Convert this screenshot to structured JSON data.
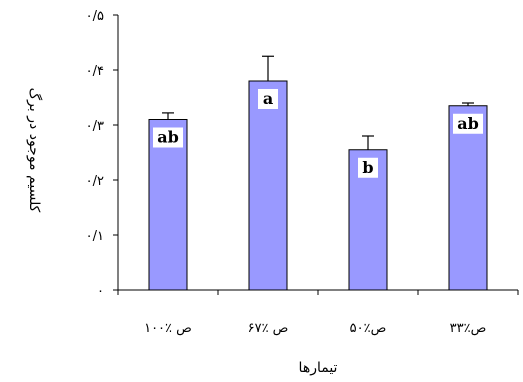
{
  "chart_data": {
    "type": "bar",
    "categories": [
      "ص ٪۱۰۰",
      "ص ٪۶۷",
      "ص٪۵۰",
      "ص٪۳۳"
    ],
    "values": [
      0.31,
      0.38,
      0.255,
      0.335
    ],
    "errors": [
      0.012,
      0.045,
      0.025,
      0.005
    ],
    "letters": [
      "ab",
      "a",
      "b",
      "ab"
    ],
    "ylim": [
      0,
      0.5
    ],
    "yticks": [
      {
        "value": 0,
        "label": "۰"
      },
      {
        "value": 0.1,
        "label": "۰/۱"
      },
      {
        "value": 0.2,
        "label": "۰/۲"
      },
      {
        "value": 0.3,
        "label": "۰/۳"
      },
      {
        "value": 0.4,
        "label": "۰/۴"
      },
      {
        "value": 0.5,
        "label": "۰/۵"
      }
    ],
    "xlabel": "تیمارها",
    "ylabel": "کلسیم موجود در برگ",
    "grid": false,
    "bar_color": "#9999ff",
    "bar_stroke": "#000000"
  }
}
